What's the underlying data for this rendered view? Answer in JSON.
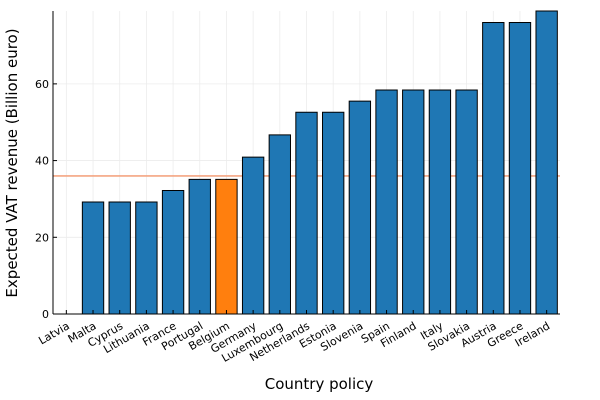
{
  "chart_data": {
    "type": "bar",
    "title": "",
    "xlabel": "Country policy",
    "ylabel": "Expected VAT revenue (Billion euro)",
    "ylim": [
      0,
      79
    ],
    "yticks": [
      0,
      20,
      40,
      60
    ],
    "grid": true,
    "categories": [
      "Latvia",
      "Malta",
      "Cyprus",
      "Lithuania",
      "France",
      "Portugal",
      "Belgium",
      "Germany",
      "Luxembourg",
      "Netherlands",
      "Estonia",
      "Slovenia",
      "Spain",
      "Finland",
      "Italy",
      "Slovakia",
      "Austria",
      "Greece",
      "Ireland"
    ],
    "values": [
      0,
      29.2,
      29.2,
      29.2,
      32.2,
      35.1,
      35.1,
      40.9,
      46.7,
      52.6,
      52.6,
      55.5,
      58.4,
      58.4,
      58.4,
      58.4,
      76.0,
      76.0,
      79.0
    ],
    "highlight_index": 6,
    "reference_line": 36.0,
    "colors": {
      "bar": "#1f77b4",
      "highlight": "#ff7f0e",
      "reference_line": "#f4a582",
      "bar_edge": "#000000",
      "grid": "#ececec"
    }
  }
}
